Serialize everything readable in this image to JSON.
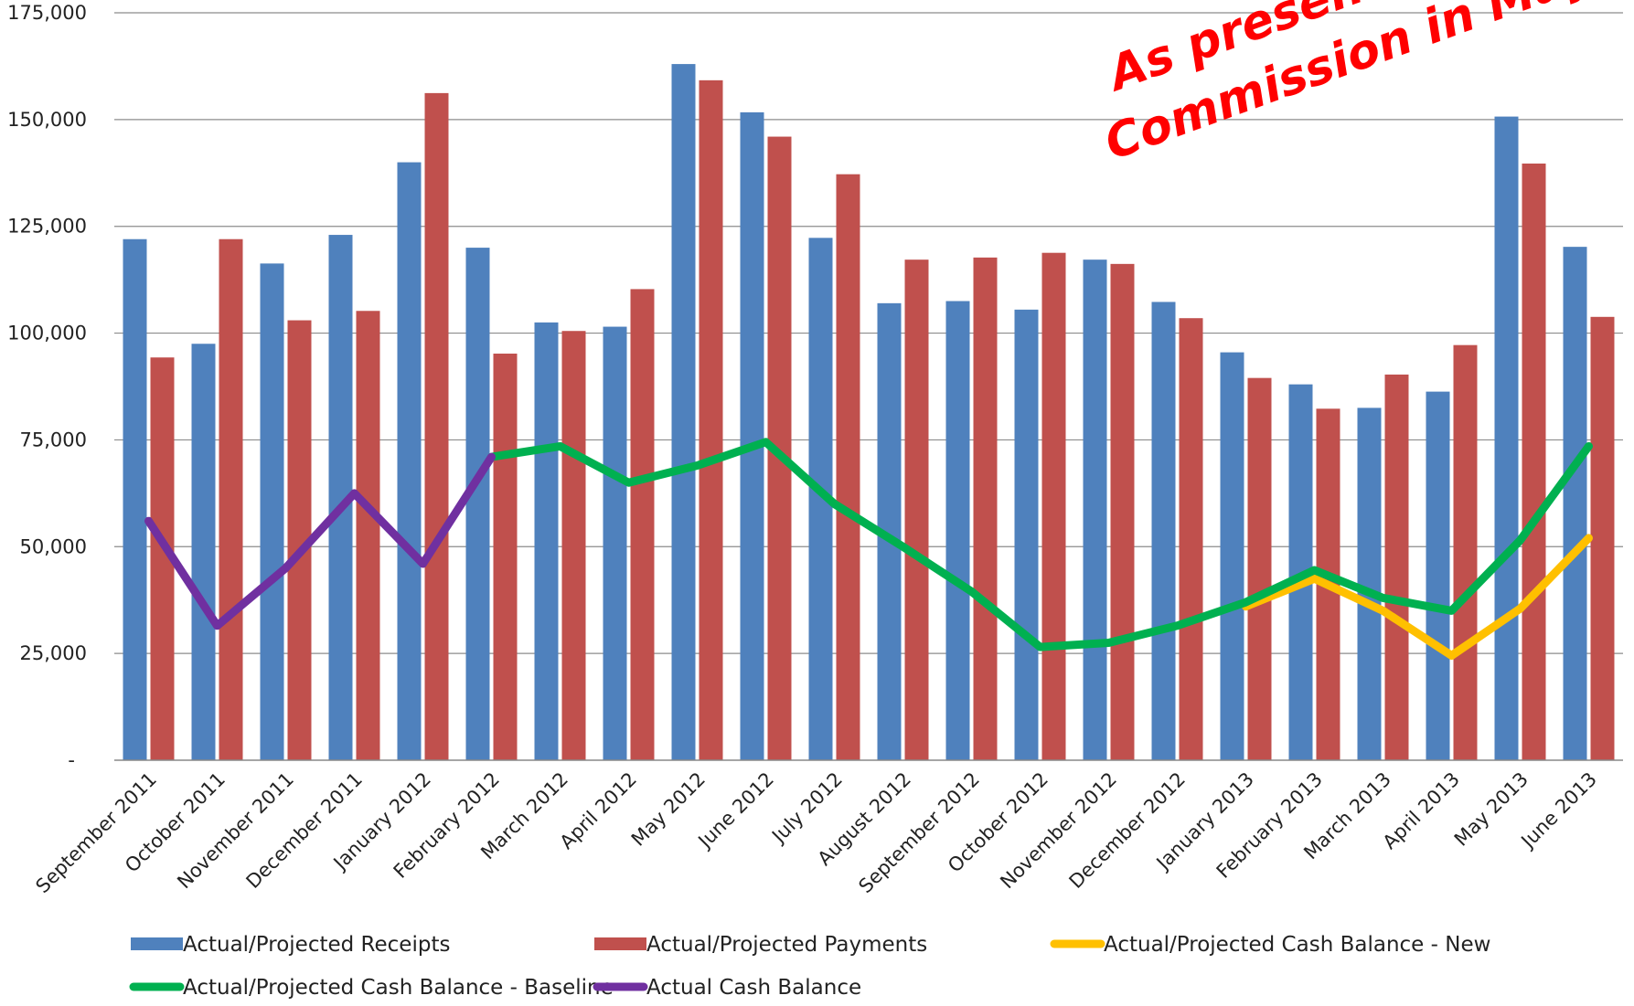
{
  "chart_data": {
    "type": "bar",
    "categories": [
      "September 2011",
      "October 2011",
      "November 2011",
      "December 2011",
      "January 2012",
      "February 2012",
      "March 2012",
      "April 2012",
      "May 2012",
      "June 2012",
      "July 2012",
      "August 2012",
      "September 2012",
      "October 2012",
      "November 2012",
      "December 2012",
      "January 2013",
      "February 2013",
      "March 2013",
      "April 2013",
      "May 2013",
      "June 2013"
    ],
    "ylim": [
      0,
      175000
    ],
    "yticks": [
      0,
      25000,
      50000,
      75000,
      100000,
      125000,
      150000,
      175000
    ],
    "ytick_labels": [
      "-",
      "25,000",
      "50,000",
      "75,000",
      "100,000",
      "125,000",
      "150,000",
      "175,000"
    ],
    "grid": true,
    "legend_position": "bottom",
    "series": [
      {
        "name": "Actual/Projected Receipts",
        "kind": "bar",
        "color": "#4f81bd",
        "values": [
          122000,
          97500,
          116300,
          123000,
          140000,
          120000,
          102500,
          101500,
          163000,
          151700,
          122300,
          107000,
          107500,
          105500,
          117200,
          107300,
          95500,
          88000,
          82500,
          86300,
          150700,
          120200
        ]
      },
      {
        "name": "Actual/Projected Payments",
        "kind": "bar",
        "color": "#c0504d",
        "values": [
          94300,
          122000,
          103000,
          105200,
          156200,
          95200,
          100500,
          110300,
          159200,
          146000,
          137200,
          117200,
          117700,
          118800,
          116200,
          103500,
          89500,
          82300,
          90300,
          97200,
          139700,
          103800
        ]
      },
      {
        "name": "Actual/Projected Cash Balance - New",
        "kind": "line",
        "color": "#ffc000",
        "values": [
          null,
          null,
          null,
          null,
          null,
          null,
          null,
          null,
          null,
          null,
          null,
          null,
          null,
          null,
          null,
          null,
          36000,
          42500,
          35000,
          24500,
          35500,
          52000
        ]
      },
      {
        "name": "Actual/Projected Cash Balance - Baseline",
        "kind": "line",
        "color": "#00b050",
        "values": [
          null,
          null,
          null,
          null,
          null,
          71000,
          73500,
          65000,
          69000,
          74500,
          60000,
          50000,
          39500,
          26500,
          27500,
          31500,
          37000,
          44500,
          38000,
          35000,
          51500,
          73500
        ]
      },
      {
        "name": "Actual Cash Balance",
        "kind": "line",
        "color": "#7030a0",
        "values": [
          56000,
          31500,
          45000,
          62500,
          46000,
          71000,
          null,
          null,
          null,
          null,
          null,
          null,
          null,
          null,
          null,
          null,
          null,
          null,
          null,
          null,
          null,
          null
        ]
      }
    ],
    "annotation": {
      "lines": [
        "As presented to",
        "Commission in May"
      ],
      "color": "#ff0000"
    }
  }
}
